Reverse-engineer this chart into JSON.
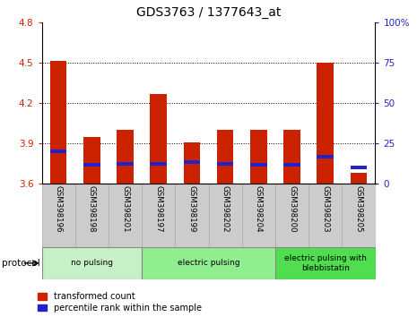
{
  "title": "GDS3763 / 1377643_at",
  "samples": [
    "GSM398196",
    "GSM398198",
    "GSM398201",
    "GSM398197",
    "GSM398199",
    "GSM398202",
    "GSM398204",
    "GSM398200",
    "GSM398203",
    "GSM398205"
  ],
  "red_values": [
    4.51,
    3.95,
    4.0,
    4.27,
    3.91,
    4.0,
    4.0,
    4.0,
    4.5,
    3.68
  ],
  "blue_values": [
    3.84,
    3.74,
    3.75,
    3.75,
    3.76,
    3.75,
    3.74,
    3.74,
    3.8,
    3.72
  ],
  "y_min": 3.6,
  "y_max": 4.8,
  "y_ticks": [
    3.6,
    3.9,
    4.2,
    4.5,
    4.8
  ],
  "y2_ticks": [
    0,
    25,
    50,
    75,
    100
  ],
  "y2_tick_labels": [
    "0",
    "25",
    "50",
    "75",
    "100%"
  ],
  "groups": [
    {
      "label": "no pulsing",
      "start": 0,
      "end": 3,
      "color": "#c8f0c8"
    },
    {
      "label": "electric pulsing",
      "start": 3,
      "end": 7,
      "color": "#90ee90"
    },
    {
      "label": "electric pulsing with\nblebbistatin",
      "start": 7,
      "end": 10,
      "color": "#50dd50"
    }
  ],
  "bar_color": "#cc2200",
  "blue_color": "#2222cc",
  "bar_width": 0.5,
  "protocol_label": "protocol",
  "legend1": "transformed count",
  "legend2": "percentile rank within the sample",
  "tick_color_left": "#cc2200",
  "tick_color_right": "#2222cc",
  "bg_plot": "#ffffff",
  "bg_xtick": "#cccccc",
  "blue_bar_height": 0.025
}
